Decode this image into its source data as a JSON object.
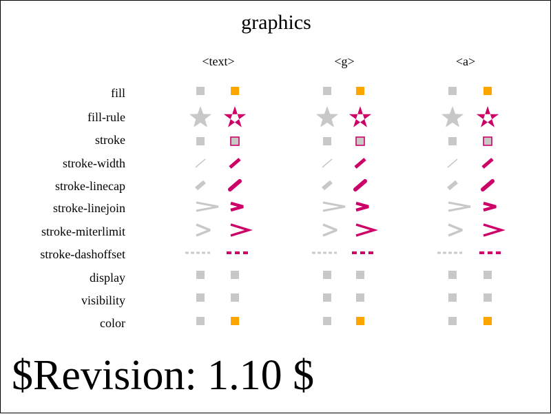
{
  "title": "graphics",
  "columns": [
    "<text>",
    "<g>",
    "<a>"
  ],
  "rows": [
    "fill",
    "fill-rule",
    "stroke",
    "stroke-width",
    "stroke-linecap",
    "stroke-linejoin",
    "stroke-miterlimit",
    "stroke-dashoffset",
    "display",
    "visibility",
    "color"
  ],
  "revision": "$Revision: 1.10 $",
  "colors": {
    "reference": "#c8c8c8",
    "accent": "#cc0066",
    "highlight": "#ffa500",
    "stroke_fill": "#c8c8c8"
  }
}
